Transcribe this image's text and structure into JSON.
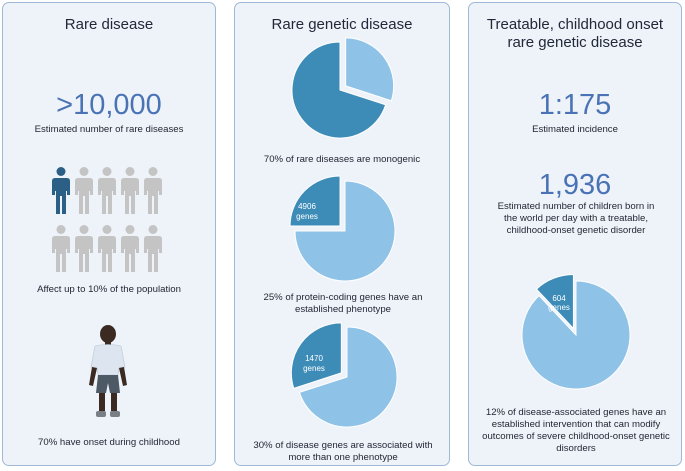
{
  "colors": {
    "panel_bg": "#eef3fa",
    "panel_border": "#9fb8d8",
    "number_blue": "#4a73b5",
    "pie_dark": "#3d8cb8",
    "pie_light": "#8ec2e6",
    "person_highlight": "#2c5f85",
    "person_gray": "#c4c4c4"
  },
  "panel1": {
    "title": "Rare disease",
    "big_number": ">10,000",
    "big_number_caption": "Estimated number of rare diseases",
    "population_caption": "Affect up to 10% of the population",
    "people_icons": {
      "total": 10,
      "highlighted": 1
    },
    "childhood_caption": "70% have onset during childhood",
    "child_icon": "child-figure-icon"
  },
  "panel2": {
    "title": "Rare genetic disease",
    "pie1": {
      "dark_percent": 70,
      "caption": "70% of rare diseases are monogenic"
    },
    "pie2": {
      "dark_percent": 25,
      "label_line1": "4906",
      "label_line2": "genes",
      "caption": "25% of protein-coding genes have an established phenotype"
    },
    "pie3": {
      "dark_percent": 30,
      "label_line1": "1470",
      "label_line2": "genes",
      "caption": "30% of disease genes are associated with more than one phenotype"
    }
  },
  "panel3": {
    "title_line1": "Treatable, childhood onset",
    "title_line2": "rare genetic disease",
    "stat1_value": "1:175",
    "stat1_caption": "Estimated incidence",
    "stat2_value": "1,936",
    "stat2_caption": "Estimated number of children born in the world per day with a treatable, childhood-onset genetic disorder",
    "pie": {
      "dark_percent": 12,
      "label_line1": "604",
      "label_line2": "genes",
      "caption": "12% of disease-associated genes have an established intervention that can modify outcomes of severe childhood-onset genetic disorders"
    }
  }
}
